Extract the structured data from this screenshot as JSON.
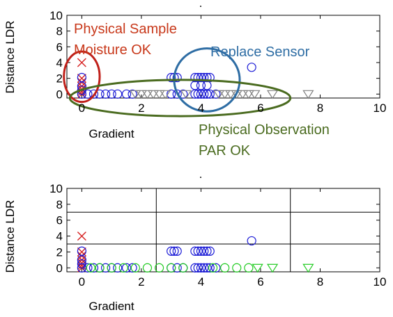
{
  "chart_data": [
    {
      "type": "scatter",
      "panel": "top",
      "title": ".",
      "xlabel": "Gradient",
      "ylabel": "Distance LDR",
      "xlim": [
        -0.5,
        10
      ],
      "ylim": [
        -0.5,
        10
      ],
      "xticks": [
        0,
        2,
        4,
        6,
        8,
        10
      ],
      "yticks": [
        0,
        2,
        4,
        6,
        8,
        10
      ],
      "grid": false,
      "series": [
        {
          "marker": "x",
          "color": "#d62020",
          "points": [
            [
              0,
              4
            ],
            [
              0,
              2
            ],
            [
              0,
              1.5
            ],
            [
              0,
              1
            ],
            [
              0,
              0.6
            ],
            [
              0,
              0.3
            ],
            [
              0,
              0
            ]
          ]
        },
        {
          "marker": "circle",
          "color": "#1a1ad6",
          "points": [
            [
              0,
              2.1
            ],
            [
              0,
              1
            ],
            [
              0,
              0.5
            ],
            [
              0,
              0
            ],
            [
              0.2,
              0
            ],
            [
              0.4,
              0
            ],
            [
              0.6,
              0
            ],
            [
              0.8,
              0
            ],
            [
              1,
              0
            ],
            [
              1.2,
              0
            ],
            [
              1.5,
              0
            ],
            [
              1.7,
              0
            ],
            [
              3,
              2.1
            ],
            [
              3.1,
              2.1
            ],
            [
              3.2,
              2.1
            ],
            [
              3,
              0
            ],
            [
              3.2,
              0
            ],
            [
              3.4,
              0
            ],
            [
              3.8,
              2.1
            ],
            [
              3.9,
              2.1
            ],
            [
              4,
              2.1
            ],
            [
              4.1,
              2.1
            ],
            [
              4.2,
              2.1
            ],
            [
              4.3,
              2.1
            ],
            [
              3.8,
              1.1
            ],
            [
              4,
              1.1
            ],
            [
              4.2,
              1.1
            ],
            [
              3.8,
              0
            ],
            [
              3.9,
              0
            ],
            [
              4,
              0
            ],
            [
              4.1,
              0
            ],
            [
              4.2,
              0
            ],
            [
              4.3,
              0
            ],
            [
              4.5,
              0
            ],
            [
              5.7,
              3.4
            ]
          ]
        },
        {
          "marker": "triangle-down",
          "color": "#808080",
          "points": [
            [
              1.8,
              0
            ],
            [
              2.0,
              0
            ],
            [
              2.2,
              0
            ],
            [
              2.4,
              0
            ],
            [
              2.6,
              0
            ],
            [
              2.8,
              0
            ],
            [
              3.5,
              0
            ],
            [
              4.6,
              0
            ],
            [
              4.8,
              0
            ],
            [
              5.0,
              0
            ],
            [
              5.2,
              0
            ],
            [
              5.4,
              0
            ],
            [
              5.6,
              0
            ],
            [
              5.8,
              0
            ],
            [
              6.4,
              0
            ],
            [
              7.6,
              0
            ]
          ]
        }
      ],
      "annotations": [
        {
          "text_lines": [
            "Physical Sample",
            "Moisture OK"
          ],
          "color": "#c8381a"
        },
        {
          "text_lines": [
            "Replace Sensor"
          ],
          "color": "#2e6da4"
        },
        {
          "text_lines": [
            "Physical Observation",
            "PAR OK"
          ],
          "color": "#4a6b1f"
        }
      ],
      "ellipses": [
        {
          "color": "#c0201a",
          "cx": 0,
          "cy": 2.2,
          "rx": 0.6,
          "ry": 3.2
        },
        {
          "color": "#2e6da4",
          "cx": 4.2,
          "cy": 1.8,
          "rx": 1.1,
          "ry": 4.0
        },
        {
          "color": "#4a6b1f",
          "cx": 3.3,
          "cy": -0.5,
          "rx": 3.7,
          "ry": 2.3
        }
      ]
    },
    {
      "type": "scatter",
      "panel": "bottom",
      "title": ".",
      "xlabel": "Gradient",
      "ylabel": "Distance LDR",
      "xlim": [
        -0.5,
        10
      ],
      "ylim": [
        -0.5,
        10
      ],
      "xticks": [
        0,
        2,
        4,
        6,
        8,
        10
      ],
      "yticks": [
        0,
        2,
        4,
        6,
        8,
        10
      ],
      "grid": false,
      "division_lines": {
        "vertical": [
          2.5,
          7.0
        ],
        "horizontal": [
          7.0,
          3.0
        ]
      },
      "series": [
        {
          "marker": "x",
          "color": "#d62020",
          "points": [
            [
              0,
              4
            ],
            [
              0,
              2
            ],
            [
              0,
              1.5
            ],
            [
              0,
              1
            ],
            [
              0,
              0.6
            ],
            [
              0,
              0.3
            ],
            [
              0,
              0
            ]
          ]
        },
        {
          "marker": "circle",
          "color": "#1a1ad6",
          "points": [
            [
              0,
              2.1
            ],
            [
              0,
              1
            ],
            [
              0,
              0.5
            ],
            [
              0,
              0
            ],
            [
              0.2,
              0
            ],
            [
              0.4,
              0
            ],
            [
              0.6,
              0
            ],
            [
              0.8,
              0
            ],
            [
              1,
              0
            ],
            [
              1.2,
              0
            ],
            [
              1.5,
              0
            ],
            [
              1.7,
              0
            ],
            [
              3,
              2.1
            ],
            [
              3.1,
              2.1
            ],
            [
              3.2,
              2.1
            ],
            [
              3,
              0
            ],
            [
              3.2,
              0
            ],
            [
              3.4,
              0
            ],
            [
              3.8,
              2.1
            ],
            [
              3.9,
              2.1
            ],
            [
              4,
              2.1
            ],
            [
              4.1,
              2.1
            ],
            [
              4.2,
              2.1
            ],
            [
              4.3,
              2.1
            ],
            [
              3.8,
              0
            ],
            [
              3.9,
              0
            ],
            [
              4,
              0
            ],
            [
              4.1,
              0
            ],
            [
              4.2,
              0
            ],
            [
              4.3,
              0
            ],
            [
              4.5,
              0
            ],
            [
              5.7,
              3.4
            ]
          ]
        },
        {
          "marker": "circle",
          "color": "#22cc22",
          "points": [
            [
              0.3,
              0
            ],
            [
              0.6,
              0
            ],
            [
              1.0,
              0
            ],
            [
              1.4,
              0
            ],
            [
              1.8,
              0
            ],
            [
              2.2,
              0
            ],
            [
              2.6,
              0
            ],
            [
              3.0,
              0
            ],
            [
              3.4,
              0
            ],
            [
              4.4,
              0
            ],
            [
              4.8,
              0
            ],
            [
              5.2,
              0
            ],
            [
              5.6,
              0
            ]
          ]
        },
        {
          "marker": "triangle-down",
          "color": "#22cc22",
          "points": [
            [
              5.9,
              0
            ],
            [
              6.4,
              0
            ],
            [
              7.6,
              0
            ]
          ]
        }
      ]
    }
  ]
}
